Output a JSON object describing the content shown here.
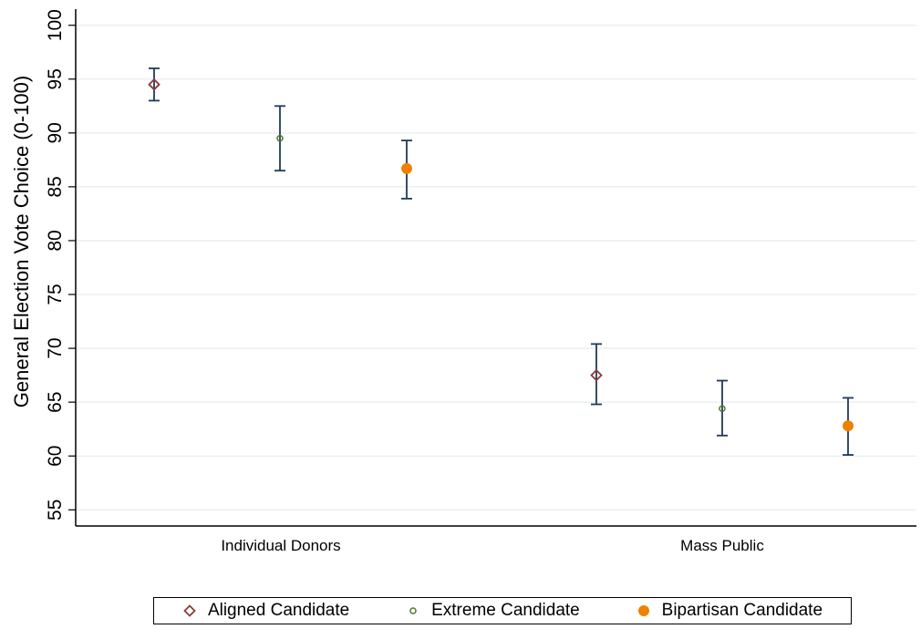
{
  "chart_data": {
    "type": "scatter",
    "ylabel": "General Election Vote Choice (0-100)",
    "xlabel": "",
    "ylim": [
      53.5,
      101.5
    ],
    "yticks": [
      55,
      60,
      65,
      70,
      75,
      80,
      85,
      90,
      95,
      100
    ],
    "grid": true,
    "legend_position": "bottom",
    "groups": [
      "Individual Donors",
      "Mass Public"
    ],
    "series": [
      {
        "name": "Aligned Candidate",
        "marker": "diamond",
        "color": "#8b3a3a",
        "values": [
          94.5,
          67.5
        ],
        "lower": [
          93.0,
          64.8
        ],
        "upper": [
          96.0,
          70.4
        ]
      },
      {
        "name": "Extreme Candidate",
        "marker": "circle",
        "color": "#4a7a2a",
        "values": [
          89.5,
          64.4
        ],
        "lower": [
          86.5,
          61.9
        ],
        "upper": [
          92.5,
          67.0
        ]
      },
      {
        "name": "Bipartisan Candidate",
        "marker": "filled-circle",
        "color": "#f08000",
        "values": [
          86.7,
          62.8
        ],
        "lower": [
          83.9,
          60.1
        ],
        "upper": [
          89.3,
          65.4
        ]
      }
    ],
    "errorbar_color": "#1f3a5a"
  }
}
